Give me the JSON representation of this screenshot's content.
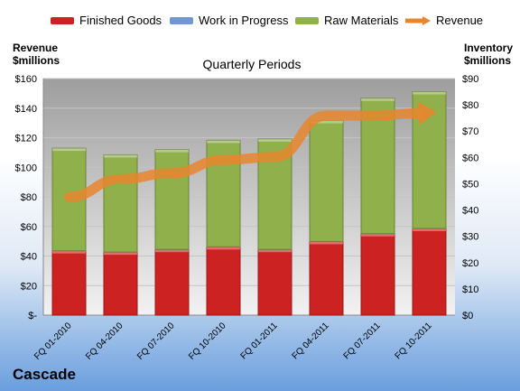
{
  "legend": {
    "finished": "Finished Goods",
    "wip": "Work in Progress",
    "raw": "Raw Materials",
    "revenue": "Revenue"
  },
  "left_axis_title": "Revenue\n$millions",
  "right_axis_title": "Inventory\n$millions",
  "company": "Cascade",
  "colors": {
    "finished": "#cc2222",
    "wip": "#6f96d6",
    "raw": "#8fb04a",
    "revenue": "#e8862e",
    "plot_bg_top": "#9e9e9e",
    "plot_bg_bottom": "#f2f2f2"
  },
  "chart_data": {
    "type": "bar",
    "subtype": "stacked bar + line, dual axis",
    "title": "Quarterly Periods",
    "categories": [
      "FQ 01-2010",
      "FQ 04-2010",
      "FQ 07-2010",
      "FQ 10-2010",
      "FQ 01-2011",
      "FQ 04-2011",
      "FQ 07-2011",
      "FQ 10-2011"
    ],
    "series": [
      {
        "name": "Finished Goods",
        "axis": "right",
        "values": [
          24.5,
          24.0,
          25.0,
          26.0,
          25.0,
          28.0,
          31.0,
          33.0
        ]
      },
      {
        "name": "Work in Progress",
        "axis": "right",
        "values": [
          0,
          0,
          0,
          0,
          0,
          0,
          0,
          0
        ]
      },
      {
        "name": "Raw Materials",
        "axis": "right",
        "values": [
          39.0,
          37.0,
          38.0,
          40.5,
          42.0,
          46.0,
          51.5,
          52.0
        ]
      },
      {
        "name": "Revenue",
        "axis": "left",
        "type": "line",
        "values": [
          80,
          92,
          96,
          105,
          107,
          135,
          135,
          137
        ]
      }
    ],
    "left_axis": {
      "ticks": [
        "$-",
        "$20",
        "$40",
        "$60",
        "$80",
        "$100",
        "$120",
        "$140",
        "$160"
      ],
      "ylim": [
        0,
        160
      ]
    },
    "right_axis": {
      "ticks": [
        "$0",
        "$10",
        "$20",
        "$30",
        "$40",
        "$50",
        "$60",
        "$70",
        "$80",
        "$90"
      ],
      "ylim": [
        0,
        90
      ]
    },
    "grid": true,
    "legend_position": "top"
  }
}
